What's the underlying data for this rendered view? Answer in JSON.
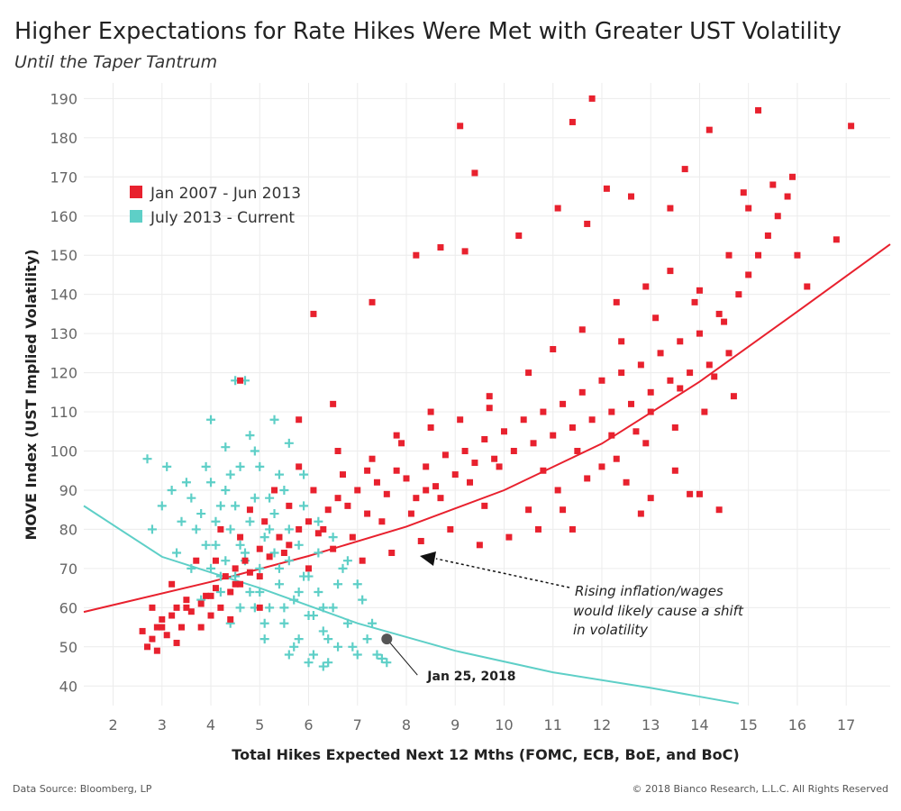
{
  "title": "Higher Expectations for Rate Hikes Were Met with Greater UST Volatility",
  "subtitle": "Until the Taper Tantrum",
  "footer": {
    "source": "Data Source: Bloomberg, LP",
    "copyright": "© 2018 Bianco Research, L.L.C. All Rights Reserved"
  },
  "chart_data": {
    "type": "scatter",
    "xlabel": "Total Hikes Expected Next 12 Mths (FOMC, ECB, BoE, and BoC)",
    "ylabel": "MOVE Index (UST Implied Volatility)",
    "xlim": [
      1.4,
      17.9
    ],
    "ylim": [
      35,
      194
    ],
    "x_ticks": [
      2,
      3,
      4,
      5,
      6,
      7,
      8,
      9,
      10,
      11,
      12,
      13,
      14,
      15,
      16,
      17
    ],
    "y_ticks": [
      40,
      50,
      60,
      70,
      80,
      90,
      100,
      110,
      120,
      130,
      140,
      150,
      160,
      170,
      180,
      190
    ],
    "grid": true,
    "legend_position": "top-left",
    "series": [
      {
        "name": "Jan 2007 - Jun 2013",
        "color": "#e8212e",
        "marker": "square",
        "points": [
          [
            2.7,
            50
          ],
          [
            2.8,
            52
          ],
          [
            2.9,
            55
          ],
          [
            3.0,
            57
          ],
          [
            3.1,
            53
          ],
          [
            3.2,
            58
          ],
          [
            3.3,
            60
          ],
          [
            3.4,
            55
          ],
          [
            3.5,
            62
          ],
          [
            3.6,
            59
          ],
          [
            3.8,
            61
          ],
          [
            3.9,
            63
          ],
          [
            4.0,
            58
          ],
          [
            4.1,
            65
          ],
          [
            4.2,
            60
          ],
          [
            4.3,
            68
          ],
          [
            4.4,
            64
          ],
          [
            4.5,
            70
          ],
          [
            4.6,
            66
          ],
          [
            4.7,
            72
          ],
          [
            4.8,
            69
          ],
          [
            5.0,
            75
          ],
          [
            5.2,
            73
          ],
          [
            5.4,
            78
          ],
          [
            5.6,
            76
          ],
          [
            5.8,
            80
          ],
          [
            6.0,
            82
          ],
          [
            6.2,
            79
          ],
          [
            6.4,
            85
          ],
          [
            6.6,
            88
          ],
          [
            6.8,
            86
          ],
          [
            7.0,
            90
          ],
          [
            7.2,
            84
          ],
          [
            7.4,
            92
          ],
          [
            7.6,
            89
          ],
          [
            7.8,
            95
          ],
          [
            8.0,
            93
          ],
          [
            8.2,
            88
          ],
          [
            8.4,
            96
          ],
          [
            8.6,
            91
          ],
          [
            8.8,
            99
          ],
          [
            9.0,
            94
          ],
          [
            9.2,
            100
          ],
          [
            9.4,
            97
          ],
          [
            9.6,
            103
          ],
          [
            9.8,
            98
          ],
          [
            10.0,
            105
          ],
          [
            10.2,
            100
          ],
          [
            10.4,
            108
          ],
          [
            10.6,
            102
          ],
          [
            10.8,
            110
          ],
          [
            11.0,
            104
          ],
          [
            11.2,
            112
          ],
          [
            11.4,
            106
          ],
          [
            11.6,
            115
          ],
          [
            11.8,
            108
          ],
          [
            12.0,
            118
          ],
          [
            12.2,
            110
          ],
          [
            12.4,
            120
          ],
          [
            12.6,
            112
          ],
          [
            12.8,
            122
          ],
          [
            13.0,
            115
          ],
          [
            13.2,
            125
          ],
          [
            13.4,
            118
          ],
          [
            13.6,
            128
          ],
          [
            13.8,
            120
          ],
          [
            14.0,
            130
          ],
          [
            14.2,
            122
          ],
          [
            14.4,
            135
          ],
          [
            14.6,
            125
          ],
          [
            14.8,
            140
          ],
          [
            15.0,
            145
          ],
          [
            15.2,
            150
          ],
          [
            15.4,
            155
          ],
          [
            15.6,
            160
          ],
          [
            15.8,
            165
          ],
          [
            16.0,
            150
          ],
          [
            16.2,
            142
          ],
          [
            16.8,
            154
          ],
          [
            17.1,
            183
          ],
          [
            15.2,
            187
          ],
          [
            11.8,
            190
          ],
          [
            9.1,
            183
          ],
          [
            11.4,
            184
          ],
          [
            14.2,
            182
          ],
          [
            9.4,
            171
          ],
          [
            10.3,
            155
          ],
          [
            8.2,
            150
          ],
          [
            8.7,
            152
          ],
          [
            9.2,
            151
          ],
          [
            7.3,
            138
          ],
          [
            6.1,
            135
          ],
          [
            4.6,
            118
          ],
          [
            5.8,
            108
          ],
          [
            6.5,
            112
          ],
          [
            7.8,
            104
          ],
          [
            8.5,
            110
          ],
          [
            9.7,
            114
          ],
          [
            10.5,
            120
          ],
          [
            11.0,
            126
          ],
          [
            11.6,
            131
          ],
          [
            12.3,
            138
          ],
          [
            12.9,
            142
          ],
          [
            13.4,
            146
          ],
          [
            14.0,
            141
          ],
          [
            14.6,
            150
          ],
          [
            12.0,
            96
          ],
          [
            12.5,
            92
          ],
          [
            13.0,
            88
          ],
          [
            13.5,
            95
          ],
          [
            14.0,
            89
          ],
          [
            14.4,
            85
          ],
          [
            11.2,
            85
          ],
          [
            10.7,
            80
          ],
          [
            10.1,
            78
          ],
          [
            9.5,
            76
          ],
          [
            8.9,
            80
          ],
          [
            8.3,
            77
          ],
          [
            7.7,
            74
          ],
          [
            7.1,
            72
          ],
          [
            6.5,
            75
          ],
          [
            6.0,
            70
          ],
          [
            5.5,
            74
          ],
          [
            5.0,
            68
          ],
          [
            4.5,
            66
          ],
          [
            4.0,
            63
          ],
          [
            3.5,
            60
          ],
          [
            3.0,
            55
          ],
          [
            2.6,
            54
          ],
          [
            2.9,
            49
          ],
          [
            3.3,
            51
          ],
          [
            3.8,
            55
          ],
          [
            4.4,
            57
          ],
          [
            5.0,
            60
          ],
          [
            6.3,
            80
          ],
          [
            6.9,
            78
          ],
          [
            7.5,
            82
          ],
          [
            8.1,
            84
          ],
          [
            8.7,
            88
          ],
          [
            9.3,
            92
          ],
          [
            9.9,
            96
          ],
          [
            10.5,
            85
          ],
          [
            11.1,
            90
          ],
          [
            11.7,
            93
          ],
          [
            12.3,
            98
          ],
          [
            12.9,
            102
          ],
          [
            13.5,
            106
          ],
          [
            14.1,
            110
          ],
          [
            14.7,
            114
          ],
          [
            11.4,
            80
          ],
          [
            12.8,
            84
          ],
          [
            13.8,
            89
          ],
          [
            12.2,
            104
          ],
          [
            13.0,
            110
          ],
          [
            13.6,
            116
          ],
          [
            14.3,
            119
          ],
          [
            11.5,
            100
          ],
          [
            12.7,
            105
          ],
          [
            10.8,
            95
          ],
          [
            9.6,
            86
          ],
          [
            8.4,
            90
          ],
          [
            7.2,
            95
          ],
          [
            6.6,
            100
          ],
          [
            5.8,
            96
          ],
          [
            5.3,
            90
          ],
          [
            4.8,
            85
          ],
          [
            4.2,
            80
          ],
          [
            3.7,
            72
          ],
          [
            3.2,
            66
          ],
          [
            2.8,
            60
          ],
          [
            4.1,
            72
          ],
          [
            4.6,
            78
          ],
          [
            5.1,
            82
          ],
          [
            5.6,
            86
          ],
          [
            6.1,
            90
          ],
          [
            6.7,
            94
          ],
          [
            7.3,
            98
          ],
          [
            7.9,
            102
          ],
          [
            8.5,
            106
          ],
          [
            9.1,
            108
          ],
          [
            9.7,
            111
          ],
          [
            12.4,
            128
          ],
          [
            13.1,
            134
          ],
          [
            13.9,
            138
          ],
          [
            14.5,
            133
          ],
          [
            15.0,
            162
          ],
          [
            15.5,
            168
          ],
          [
            15.9,
            170
          ],
          [
            13.4,
            162
          ],
          [
            12.6,
            165
          ],
          [
            11.7,
            158
          ],
          [
            11.1,
            162
          ],
          [
            12.1,
            167
          ],
          [
            13.7,
            172
          ],
          [
            14.9,
            166
          ]
        ]
      },
      {
        "name": "July 2013 - Current",
        "color": "#5ecfc7",
        "marker": "plus",
        "points": [
          [
            2.7,
            98
          ],
          [
            2.8,
            80
          ],
          [
            3.0,
            86
          ],
          [
            3.2,
            90
          ],
          [
            3.4,
            82
          ],
          [
            3.6,
            88
          ],
          [
            3.8,
            84
          ],
          [
            4.0,
            92
          ],
          [
            4.1,
            76
          ],
          [
            4.2,
            86
          ],
          [
            4.3,
            72
          ],
          [
            4.4,
            80
          ],
          [
            4.5,
            68
          ],
          [
            4.6,
            96
          ],
          [
            4.7,
            74
          ],
          [
            4.8,
            64
          ],
          [
            4.9,
            88
          ],
          [
            5.0,
            70
          ],
          [
            5.1,
            78
          ],
          [
            5.2,
            60
          ],
          [
            5.3,
            84
          ],
          [
            5.4,
            66
          ],
          [
            5.5,
            56
          ],
          [
            5.6,
            72
          ],
          [
            5.7,
            62
          ],
          [
            5.8,
            52
          ],
          [
            5.9,
            68
          ],
          [
            6.0,
            58
          ],
          [
            6.1,
            48
          ],
          [
            6.2,
            64
          ],
          [
            6.3,
            54
          ],
          [
            6.4,
            46
          ],
          [
            6.5,
            60
          ],
          [
            6.6,
            50
          ],
          [
            6.8,
            56
          ],
          [
            7.0,
            48
          ],
          [
            7.2,
            52
          ],
          [
            7.4,
            48
          ],
          [
            7.6,
            46
          ],
          [
            4.3,
            101
          ],
          [
            4.7,
            118
          ],
          [
            4.5,
            118
          ],
          [
            4.0,
            108
          ],
          [
            5.3,
            108
          ],
          [
            5.6,
            102
          ],
          [
            4.8,
            104
          ],
          [
            4.4,
            94
          ],
          [
            5.0,
            96
          ],
          [
            5.5,
            90
          ],
          [
            5.9,
            86
          ],
          [
            6.2,
            82
          ],
          [
            6.5,
            78
          ],
          [
            6.8,
            72
          ],
          [
            4.2,
            64
          ],
          [
            4.6,
            60
          ],
          [
            5.1,
            56
          ],
          [
            5.7,
            50
          ],
          [
            6.3,
            45
          ],
          [
            3.6,
            70
          ],
          [
            3.9,
            76
          ],
          [
            3.3,
            74
          ],
          [
            4.0,
            70
          ],
          [
            4.8,
            82
          ],
          [
            5.2,
            88
          ],
          [
            5.8,
            76
          ],
          [
            6.0,
            68
          ],
          [
            6.6,
            66
          ],
          [
            7.1,
            62
          ],
          [
            7.3,
            56
          ],
          [
            5.4,
            94
          ],
          [
            4.9,
            100
          ],
          [
            4.5,
            86
          ],
          [
            4.1,
            82
          ],
          [
            3.7,
            80
          ],
          [
            5.6,
            80
          ],
          [
            5.3,
            74
          ],
          [
            4.7,
            72
          ],
          [
            5.0,
            64
          ],
          [
            5.5,
            60
          ],
          [
            6.1,
            58
          ],
          [
            6.4,
            52
          ],
          [
            6.9,
            50
          ],
          [
            7.5,
            47
          ],
          [
            3.1,
            96
          ],
          [
            3.5,
            92
          ],
          [
            3.9,
            96
          ],
          [
            4.3,
            90
          ],
          [
            5.9,
            94
          ],
          [
            6.2,
            74
          ],
          [
            6.7,
            70
          ],
          [
            7.0,
            66
          ],
          [
            5.1,
            52
          ],
          [
            5.6,
            48
          ],
          [
            6.0,
            46
          ],
          [
            4.4,
            56
          ],
          [
            4.9,
            60
          ],
          [
            5.8,
            64
          ],
          [
            6.3,
            60
          ],
          [
            4.6,
            76
          ],
          [
            5.2,
            80
          ],
          [
            5.4,
            70
          ],
          [
            3.8,
            62
          ],
          [
            4.2,
            68
          ]
        ]
      }
    ],
    "trendlines": [
      {
        "series": "Jan 2007 - Jun 2013",
        "color": "#e8212e",
        "type": "exponential",
        "points": [
          [
            1.4,
            58.9
          ],
          [
            4,
            66.6
          ],
          [
            6,
            73.2
          ],
          [
            8,
            80.7
          ],
          [
            10,
            90.0
          ],
          [
            12,
            101.9
          ],
          [
            14,
            117.7
          ],
          [
            16,
            135.6
          ],
          [
            17.9,
            152.8
          ]
        ]
      },
      {
        "series": "July 2013 - Current",
        "color": "#5ecfc7",
        "type": "exponential",
        "points": [
          [
            1.4,
            86
          ],
          [
            3,
            73
          ],
          [
            5,
            65
          ],
          [
            7,
            56
          ],
          [
            9,
            49
          ],
          [
            11,
            43.5
          ],
          [
            13,
            39.5
          ],
          [
            14.8,
            35.5
          ]
        ]
      }
    ],
    "highlight": {
      "label": "Jan 25, 2018",
      "x": 7.6,
      "y": 52
    },
    "annotation": [
      "Rising inflation/wages",
      "would likely cause a shift",
      "in volatility"
    ]
  }
}
